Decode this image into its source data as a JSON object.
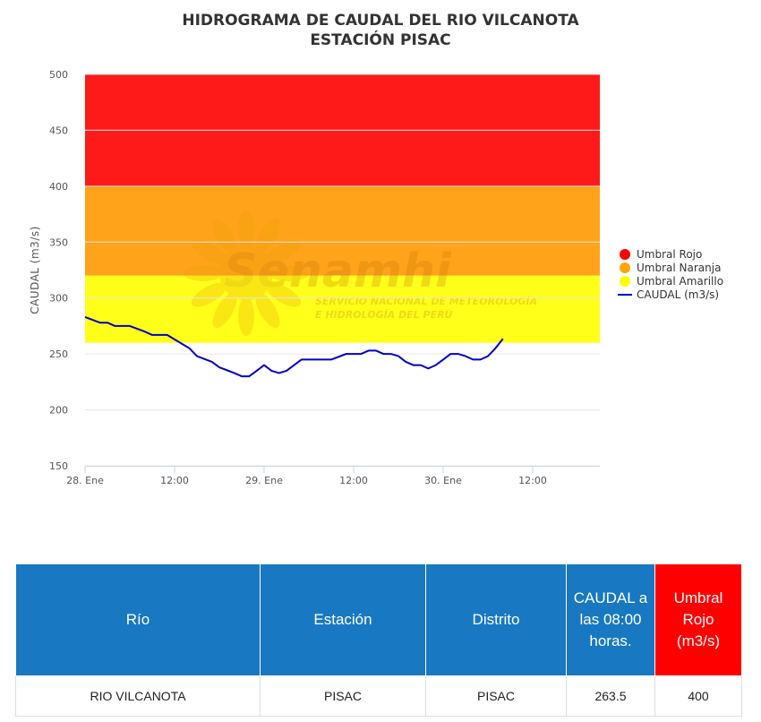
{
  "chart_data": {
    "type": "line",
    "title": "HIDROGRAMA DE CAUDAL DEL RIO VILCANOTA",
    "subtitle": "ESTACIÓN PISAC",
    "ylabel": "CAUDAL (m3/s)",
    "xlabel": "",
    "ylim": [
      150,
      500
    ],
    "yticks": [
      150,
      200,
      250,
      300,
      350,
      400,
      450,
      500
    ],
    "xlim": [
      "2025-01-28 00:00",
      "2025-01-30 21:00"
    ],
    "xticks": [
      {
        "x": "2025-01-28 00:00",
        "label": "28. Ene"
      },
      {
        "x": "2025-01-28 12:00",
        "label": "12:00"
      },
      {
        "x": "2025-01-29 00:00",
        "label": "29. Ene"
      },
      {
        "x": "2025-01-29 12:00",
        "label": "12:00"
      },
      {
        "x": "2025-01-30 00:00",
        "label": "30. Ene"
      },
      {
        "x": "2025-01-30 12:00",
        "label": "12:00"
      }
    ],
    "grid": true,
    "legend_position": "right",
    "bands": [
      {
        "name": "Umbral Rojo",
        "from": 400,
        "to": 500,
        "color": "#ff1a1a"
      },
      {
        "name": "Umbral Naranja",
        "from": 320,
        "to": 400,
        "color": "#ffa31a"
      },
      {
        "name": "Umbral Amarillo",
        "from": 260,
        "to": 320,
        "color": "#ffff1a"
      }
    ],
    "series": [
      {
        "name": "CAUDAL (m3/s)",
        "color": "#0000cc",
        "points": [
          [
            "2025-01-28 00:00",
            283
          ],
          [
            "2025-01-28 02:00",
            278
          ],
          [
            "2025-01-28 03:00",
            278
          ],
          [
            "2025-01-28 04:00",
            275
          ],
          [
            "2025-01-28 06:00",
            275
          ],
          [
            "2025-01-28 08:00",
            270
          ],
          [
            "2025-01-28 09:00",
            267
          ],
          [
            "2025-01-28 11:00",
            267
          ],
          [
            "2025-01-28 12:00",
            263
          ],
          [
            "2025-01-28 14:00",
            255
          ],
          [
            "2025-01-28 15:00",
            248
          ],
          [
            "2025-01-28 17:00",
            243
          ],
          [
            "2025-01-28 18:00",
            238
          ],
          [
            "2025-01-28 20:00",
            233
          ],
          [
            "2025-01-28 21:00",
            230
          ],
          [
            "2025-01-28 22:00",
            230
          ],
          [
            "2025-01-28 23:00",
            235
          ],
          [
            "2025-01-29 00:00",
            240
          ],
          [
            "2025-01-29 01:00",
            235
          ],
          [
            "2025-01-29 02:00",
            233
          ],
          [
            "2025-01-29 03:00",
            235
          ],
          [
            "2025-01-29 05:00",
            245
          ],
          [
            "2025-01-29 07:00",
            245
          ],
          [
            "2025-01-29 09:00",
            245
          ],
          [
            "2025-01-29 11:00",
            250
          ],
          [
            "2025-01-29 13:00",
            250
          ],
          [
            "2025-01-29 14:00",
            253
          ],
          [
            "2025-01-29 15:00",
            253
          ],
          [
            "2025-01-29 16:00",
            250
          ],
          [
            "2025-01-29 17:00",
            250
          ],
          [
            "2025-01-29 18:00",
            248
          ],
          [
            "2025-01-29 19:00",
            243
          ],
          [
            "2025-01-29 20:00",
            240
          ],
          [
            "2025-01-29 21:00",
            240
          ],
          [
            "2025-01-29 22:00",
            237
          ],
          [
            "2025-01-29 23:00",
            240
          ],
          [
            "2025-01-30 00:00",
            245
          ],
          [
            "2025-01-30 01:00",
            250
          ],
          [
            "2025-01-30 02:00",
            250
          ],
          [
            "2025-01-30 03:00",
            248
          ],
          [
            "2025-01-30 04:00",
            245
          ],
          [
            "2025-01-30 05:00",
            245
          ],
          [
            "2025-01-30 06:00",
            248
          ],
          [
            "2025-01-30 07:00",
            255
          ],
          [
            "2025-01-30 08:00",
            263.5
          ]
        ]
      }
    ]
  },
  "watermark": {
    "name": "Senamhi",
    "line1": "SERVICIO NACIONAL DE METEOROLOGÍA",
    "line2": "E HIDROLOGÍA DEL PERÚ"
  },
  "table": {
    "headers": {
      "rio": "Río",
      "estacion": "Estación",
      "distrito": "Distrito",
      "caudal": "CAUDAL a las 08:00 horas.",
      "umbral": "Umbral Rojo (m3/s)"
    },
    "row": {
      "rio": "RIO VILCANOTA",
      "estacion": "PISAC",
      "distrito": "PISAC",
      "caudal": "263.5",
      "umbral": "400"
    }
  }
}
